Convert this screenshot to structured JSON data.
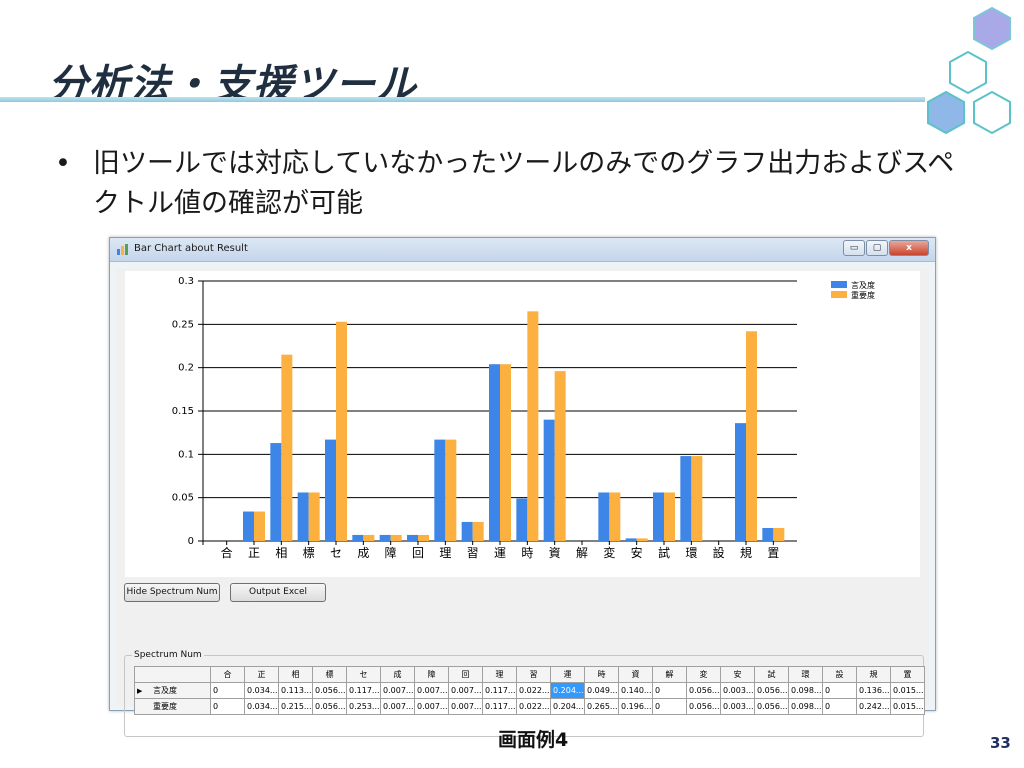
{
  "slide": {
    "title": "分析法・支援ツール",
    "bullet_symbol": "•",
    "bullet_text": "旧ツールでは対応していなかったツールのみでのグラフ出力およびスペクトル値の確認が可能",
    "caption": "画面例4",
    "page_number": "33"
  },
  "window": {
    "title": "Bar Chart about Result",
    "minimize_label": "▭",
    "maximize_label": "▢",
    "close_label": "x"
  },
  "buttons": {
    "hide_spectrum": "Hide Spectrum Num",
    "output_excel": "Output Excel"
  },
  "spectrum": {
    "group_label": "Spectrum Num",
    "columns": [
      "合",
      "正",
      "相",
      "標",
      "セ",
      "成",
      "障",
      "回",
      "理",
      "習",
      "運",
      "時",
      "資",
      "解",
      "変",
      "安",
      "試",
      "環",
      "設",
      "規",
      "置"
    ],
    "rows": [
      {
        "marker": "▶",
        "label": "言及度",
        "values": [
          "0",
          "0.034...",
          "0.113...",
          "0.056...",
          "0.117...",
          "0.007...",
          "0.007...",
          "0.007...",
          "0.117...",
          "0.022...",
          "0.204...",
          "0.049...",
          "0.140...",
          "0",
          "0.056...",
          "0.003...",
          "0.056...",
          "0.098...",
          "0",
          "0.136...",
          "0.015..."
        ]
      },
      {
        "marker": "",
        "label": "重要度",
        "values": [
          "0",
          "0.034...",
          "0.215...",
          "0.056...",
          "0.253...",
          "0.007...",
          "0.007...",
          "0.007...",
          "0.117...",
          "0.022...",
          "0.204...",
          "0.265...",
          "0.196...",
          "0",
          "0.056...",
          "0.003...",
          "0.056...",
          "0.098...",
          "0",
          "0.242...",
          "0.015..."
        ]
      }
    ],
    "selected": {
      "row": 0,
      "col": 10
    }
  },
  "chart_data": {
    "type": "bar",
    "categories": [
      "合",
      "正",
      "相",
      "標",
      "セ",
      "成",
      "障",
      "回",
      "理",
      "習",
      "運",
      "時",
      "資",
      "解",
      "変",
      "安",
      "試",
      "環",
      "設",
      "規",
      "置"
    ],
    "series": [
      {
        "name": "言及度",
        "color": "#3d85e6",
        "values": [
          0,
          0.034,
          0.113,
          0.056,
          0.117,
          0.007,
          0.007,
          0.007,
          0.117,
          0.022,
          0.204,
          0.049,
          0.14,
          0,
          0.056,
          0.003,
          0.056,
          0.098,
          0,
          0.136,
          0.015
        ]
      },
      {
        "name": "重要度",
        "color": "#fbb040",
        "values": [
          0,
          0.034,
          0.215,
          0.056,
          0.253,
          0.007,
          0.007,
          0.007,
          0.117,
          0.022,
          0.204,
          0.265,
          0.196,
          0,
          0.056,
          0.003,
          0.056,
          0.098,
          0,
          0.242,
          0.015
        ]
      }
    ],
    "yticks": [
      "0",
      "0.05",
      "0.1",
      "0.15",
      "0.2",
      "0.25",
      "0.3"
    ],
    "ylim": [
      0,
      0.3
    ],
    "grid": "horizontal",
    "legend_position": "top-right"
  }
}
